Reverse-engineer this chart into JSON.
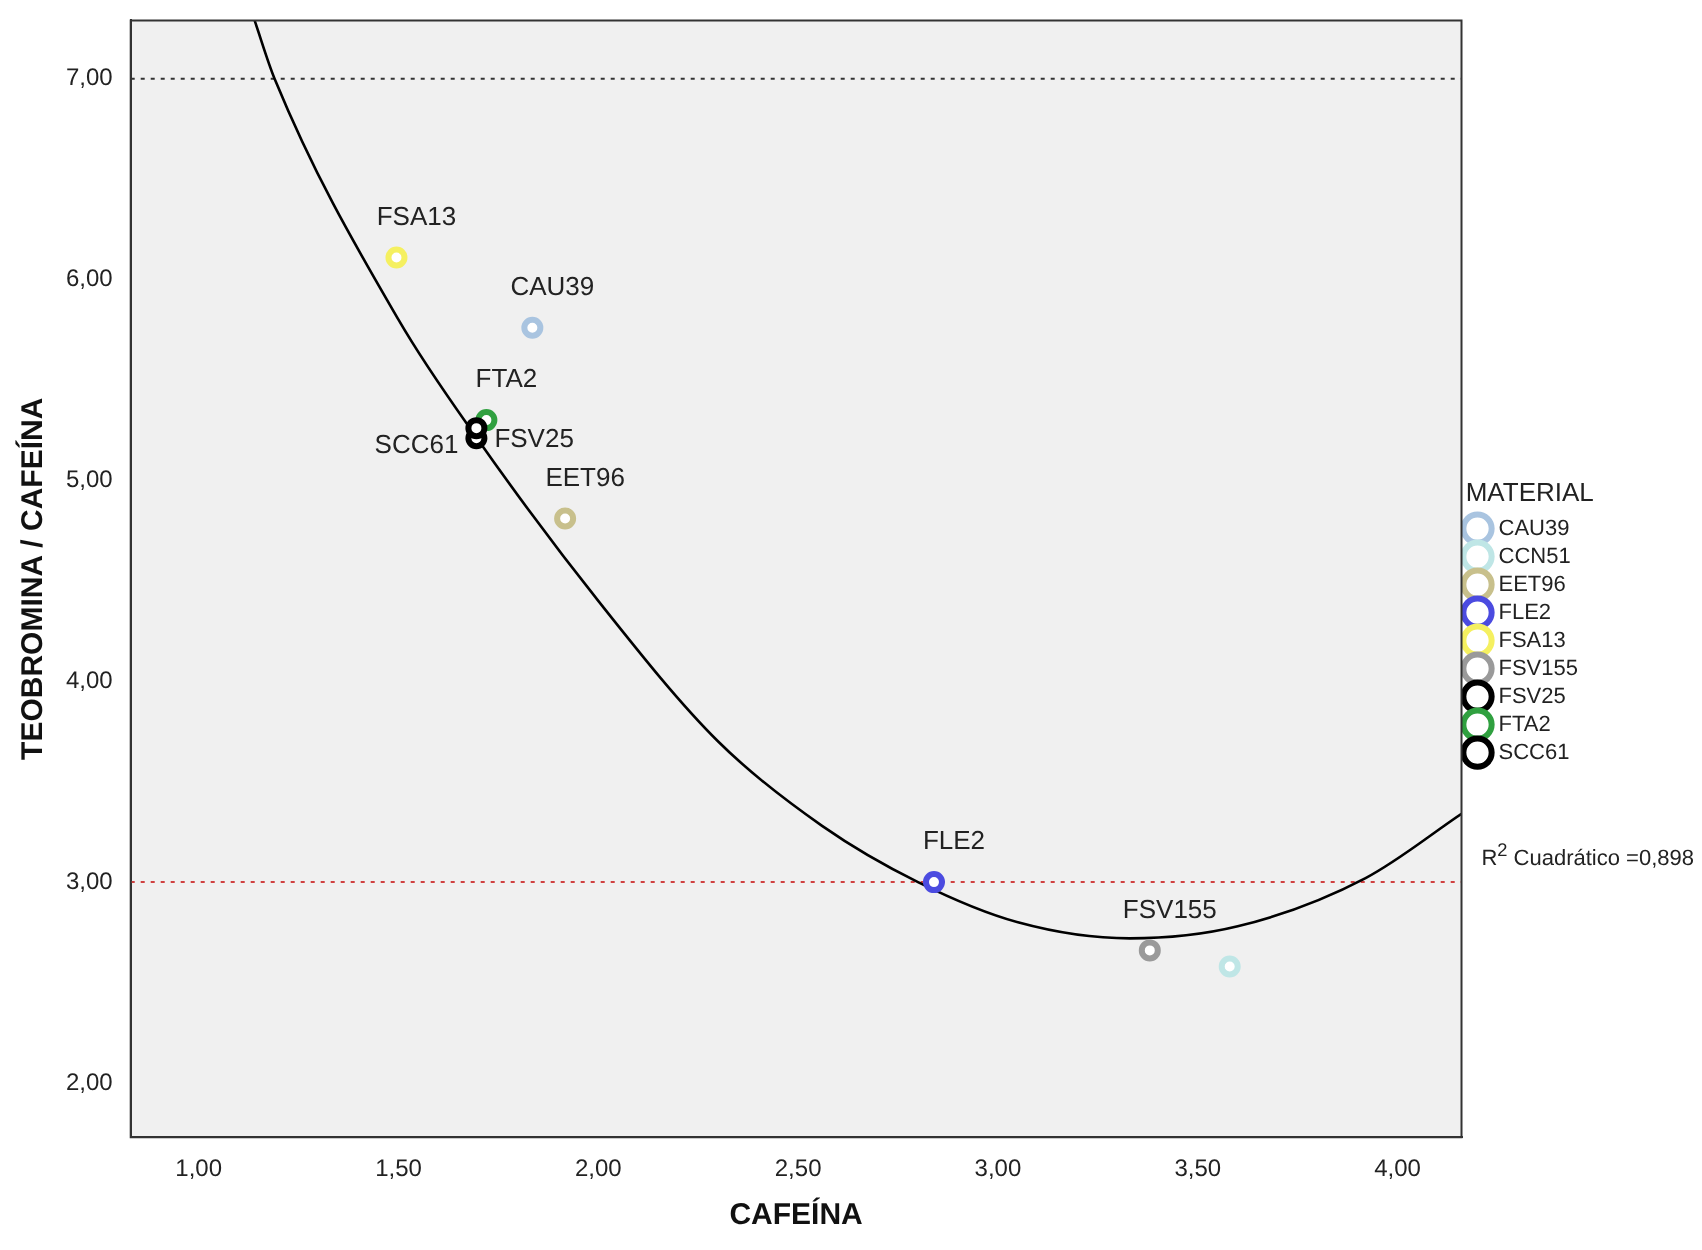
{
  "chart_data": {
    "type": "scatter",
    "xlabel": "CAFEÍNA",
    "ylabel": "TEOBROMINA / CAFEÍNA",
    "legend_title": "MATERIAL",
    "legend": "right",
    "marker": "circle",
    "grid": false,
    "xlim": [
      0.83,
      4.16
    ],
    "ylim": [
      1.73,
      7.29
    ],
    "xticks": [
      {
        "value": 1,
        "label": "1,00"
      },
      {
        "value": 1.5,
        "label": "1,50"
      },
      {
        "value": 2,
        "label": "2,00"
      },
      {
        "value": 2.5,
        "label": "2,50"
      },
      {
        "value": 3,
        "label": "3,00"
      },
      {
        "value": 3.5,
        "label": "3,50"
      },
      {
        "value": 4,
        "label": "4,00"
      }
    ],
    "yticks": [
      {
        "value": 2,
        "label": "2,00"
      },
      {
        "value": 3,
        "label": "3,00"
      },
      {
        "value": 4,
        "label": "4,00"
      },
      {
        "value": 5,
        "label": "5,00"
      },
      {
        "value": 6,
        "label": "6,00"
      },
      {
        "value": 7,
        "label": "7,00"
      }
    ],
    "ref_lines": [
      {
        "axis": "y",
        "value": 7,
        "color": "#333333",
        "line_style": "dotted"
      },
      {
        "axis": "y",
        "value": 3,
        "color": "#d04040",
        "line_style": "dotted"
      }
    ],
    "series": [
      {
        "name": "CAU39",
        "color": "#a9c4e0",
        "x": [
          1.835
        ],
        "values": [
          5.76
        ]
      },
      {
        "name": "CCN51",
        "color": "#bfe6e6",
        "x": [
          3.58
        ],
        "values": [
          2.58
        ]
      },
      {
        "name": "EET96",
        "color": "#c8c08c",
        "x": [
          1.917
        ],
        "values": [
          4.81
        ]
      },
      {
        "name": "FLE2",
        "color": "#4b4be0",
        "x": [
          2.84
        ],
        "values": [
          3.0
        ]
      },
      {
        "name": "FSA13",
        "color": "#f5f060",
        "x": [
          1.495
        ],
        "values": [
          6.11
        ]
      },
      {
        "name": "FSV155",
        "color": "#9a9a9a",
        "x": [
          3.38
        ],
        "values": [
          2.66
        ]
      },
      {
        "name": "FSV25",
        "color": "#000000",
        "x": [
          1.695
        ],
        "values": [
          5.26
        ]
      },
      {
        "name": "FTA2",
        "color": "#30a040",
        "x": [
          1.72
        ],
        "values": [
          5.3
        ]
      },
      {
        "name": "SCC61",
        "color": "#000000",
        "x": [
          1.695
        ],
        "values": [
          5.21
        ]
      },
      {
        "type": "line",
        "color": "#000000",
        "marker": "none",
        "x": [
          1.14,
          1.19,
          1.5,
          1.7,
          2.0,
          2.3,
          2.56,
          2.8,
          3.05,
          3.33,
          3.6,
          3.92,
          4.16
        ],
        "values": [
          7.29,
          7.0,
          5.8,
          5.2,
          4.4,
          3.7,
          3.28,
          3.0,
          2.8,
          2.72,
          2.78,
          3.02,
          3.34
        ]
      }
    ],
    "annotations": [
      {
        "text": "CAU39",
        "x": 1.835,
        "y": 5.76
      },
      {
        "text": "EET96",
        "x": 1.917,
        "y": 4.81
      },
      {
        "text": "FLE2",
        "x": 2.84,
        "y": 3.0
      },
      {
        "text": "FSA13",
        "x": 1.495,
        "y": 6.11
      },
      {
        "text": "FSV155",
        "x": 3.38,
        "y": 2.66
      },
      {
        "text": "FTA2",
        "x": 1.72,
        "y": 5.3
      },
      {
        "text": "FSV25",
        "x": 1.695,
        "y": 5.26
      },
      {
        "text": "SCC61",
        "x": 1.695,
        "y": 5.21
      },
      "R$^{2}$ Cuadrático =0,898"
    ]
  }
}
